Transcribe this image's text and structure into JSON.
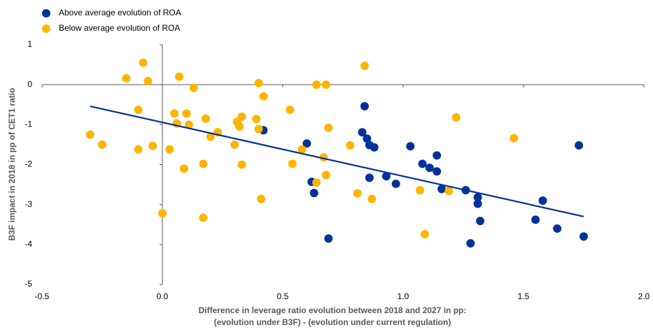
{
  "chart_data": {
    "type": "scatter",
    "xlabel": [
      "Difference in leverage ratio evolution between 2018 and 2027 in pp:",
      "(evolution under B3F) - (evolution under current regulation)"
    ],
    "ylabel": "B3F impact in 2018 in pp of CET1 ratio",
    "xlim": [
      -0.5,
      2.0
    ],
    "ylim": [
      -5,
      1
    ],
    "xticks": [
      -0.5,
      {
        "value": 0,
        "label": "0.0"
      },
      0.5,
      {
        "value": 1,
        "label": "1.0"
      },
      1.5,
      {
        "value": 2,
        "label": "2.0"
      }
    ],
    "yticks": [
      1,
      0,
      -1,
      -2,
      -3,
      -4,
      -5
    ],
    "legend": "top-left",
    "series": [
      {
        "name": "Above average evolution of ROA",
        "color": "#003299",
        "x": [
          0.84,
          0.42,
          0.85,
          0.86,
          0.6,
          0.83,
          0.88,
          0.62,
          0.63,
          0.69,
          0.86,
          0.93,
          0.97,
          1.03,
          1.08,
          1.11,
          1.14,
          1.14,
          1.16,
          1.26,
          1.31,
          1.31,
          1.32,
          1.28,
          1.55,
          1.58,
          1.64,
          1.73,
          1.75
        ],
        "values": [
          -0.54,
          -1.14,
          -1.35,
          -1.51,
          -1.47,
          -1.19,
          -1.57,
          -2.43,
          -2.71,
          -3.85,
          -2.33,
          -2.29,
          -2.48,
          -1.54,
          -1.98,
          -2.08,
          -1.77,
          -2.17,
          -2.61,
          -2.64,
          -2.82,
          -2.98,
          -3.41,
          -3.97,
          -3.38,
          -2.9,
          -3.6,
          -1.52,
          -3.8
        ]
      },
      {
        "name": "Below average evolution of ROA",
        "color": "#ffb400",
        "x": [
          -0.3,
          -0.25,
          -0.15,
          -0.1,
          -0.1,
          -0.08,
          -0.06,
          -0.04,
          0.0,
          0.03,
          0.05,
          0.06,
          0.07,
          0.09,
          0.1,
          0.11,
          0.13,
          0.17,
          0.17,
          0.18,
          0.2,
          0.23,
          0.3,
          0.31,
          0.32,
          0.33,
          0.33,
          0.39,
          0.4,
          0.42,
          0.4,
          0.41,
          0.53,
          0.54,
          0.58,
          0.64,
          0.64,
          0.67,
          0.68,
          0.68,
          0.69,
          0.78,
          0.81,
          0.84,
          0.87,
          1.07,
          1.09,
          1.19,
          1.22,
          1.46
        ],
        "values": [
          -1.25,
          -1.5,
          0.16,
          -0.63,
          -1.62,
          0.55,
          0.09,
          -1.53,
          -3.22,
          -1.62,
          -0.72,
          -0.97,
          0.2,
          -2.1,
          -0.72,
          -1.0,
          -0.08,
          -3.33,
          -1.98,
          -0.85,
          -1.3,
          -1.19,
          -1.5,
          -0.93,
          -1.05,
          -0.8,
          -2.0,
          -0.86,
          0.04,
          -0.29,
          -1.11,
          -2.86,
          -0.63,
          -1.98,
          -1.62,
          0.0,
          -2.45,
          -1.82,
          0.0,
          -2.26,
          -1.08,
          -1.52,
          -2.72,
          0.47,
          -2.86,
          -2.64,
          -3.74,
          -2.66,
          -0.82,
          -1.34
        ]
      }
    ],
    "trendline": {
      "color": "#003299",
      "x": [
        -0.3,
        1.75
      ],
      "y": [
        -0.54,
        -3.3
      ]
    }
  }
}
